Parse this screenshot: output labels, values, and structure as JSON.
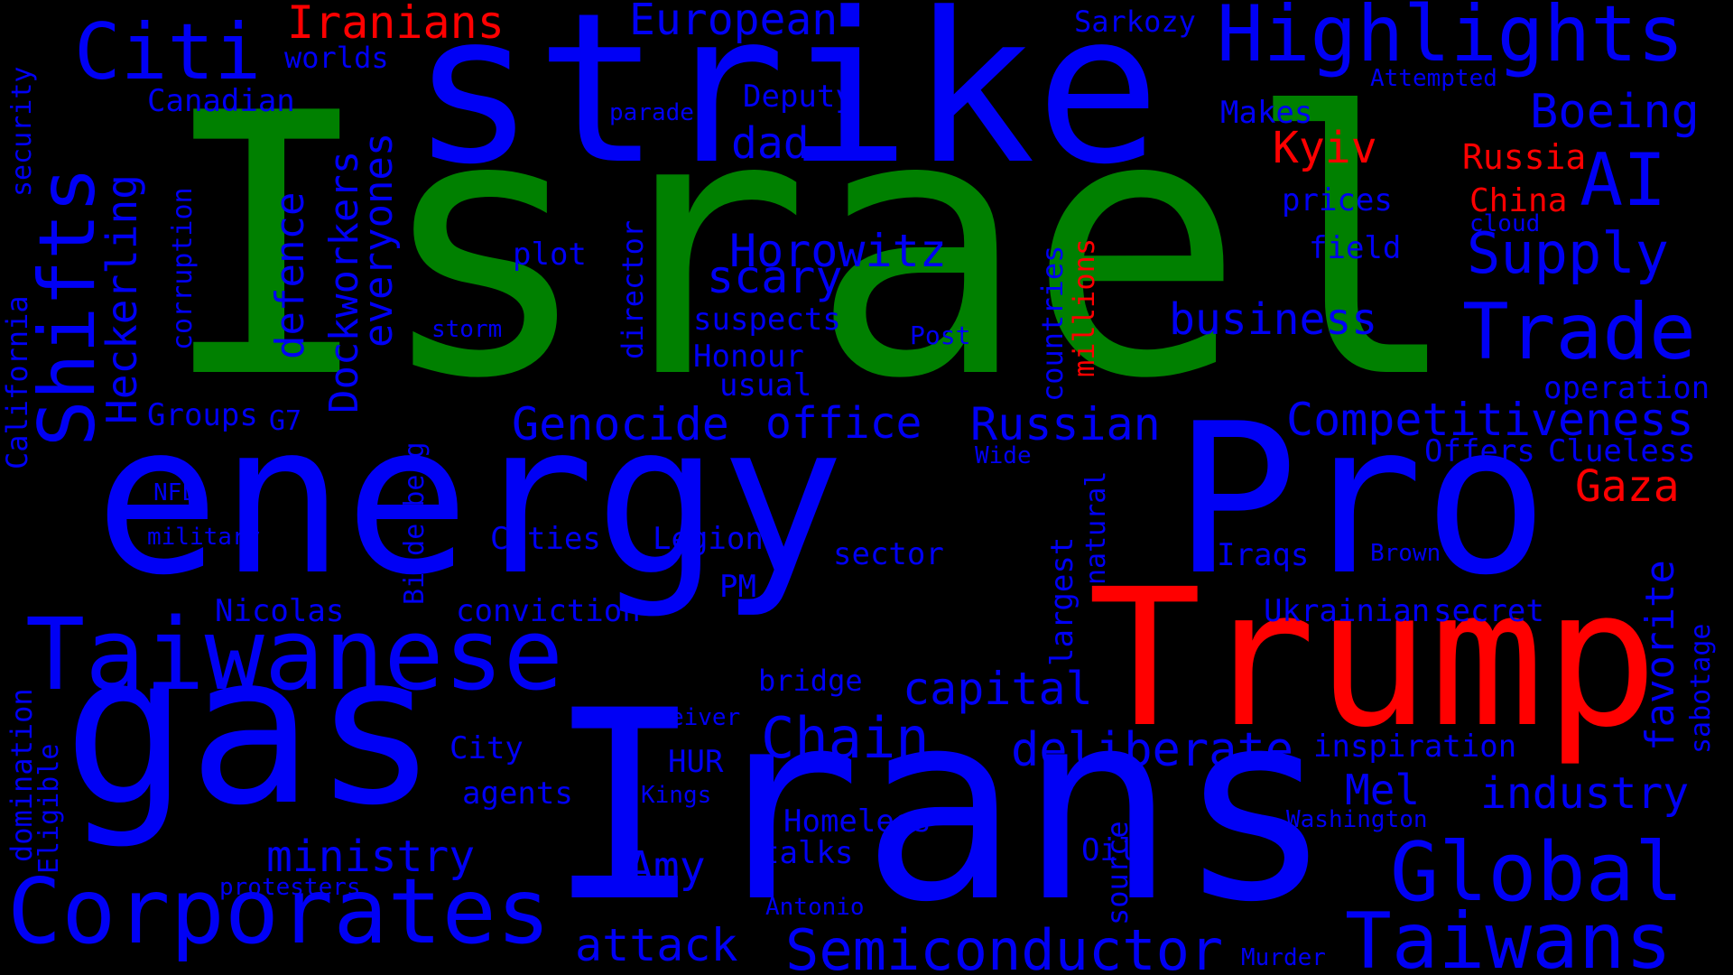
{
  "colors": {
    "blue": "#0000f5",
    "green": "#008000",
    "red": "#ff0000",
    "background": "#000000"
  },
  "words": {
    "israel": "Israel",
    "strike": "strike",
    "energy": "energy",
    "pro": "Pro",
    "trump": "Trump",
    "irans": "Irans",
    "gas": "gas",
    "taiwanese": "Taiwanese",
    "corporates": "Corporates",
    "highlights": "Highlights",
    "citi": "Citi",
    "shifts": "Shifts",
    "global": "Global",
    "taiwans": "Taiwans",
    "semiconductor": "Semiconductor",
    "trade": "Trade",
    "supply": "Supply",
    "ai": "AI",
    "boeing": "Boeing",
    "competitiveness": "Competitiveness",
    "chain": "Chain",
    "deliberate": "deliberate",
    "industry": "industry",
    "business": "business",
    "horowitz": "Horowitz",
    "scary": "scary",
    "office": "office",
    "genocide": "Genocide",
    "russian": "Russian",
    "european": "European",
    "iranians": "Iranians",
    "kyiv": "Kyiv",
    "russia": "Russia",
    "china": "China",
    "gaza": "Gaza",
    "millions": "millions",
    "capital": "capital",
    "ministry": "ministry",
    "attack": "attack",
    "amy": "Amy",
    "dad": "dad",
    "heckerling": "Heckerling",
    "dockworkers": "Dockworkers",
    "everyones": "everyones",
    "defence": "defence",
    "corruption": "corruption",
    "california": "California",
    "security": "security",
    "domination": "domination",
    "eligible": "Eligible",
    "bilderberg": "Bilderberg",
    "director": "director",
    "countries": "countries",
    "natural": "natural",
    "largest": "largest",
    "source": "source",
    "favorite": "favorite",
    "sabotage": "sabotage",
    "canadian": "Canadian",
    "worlds": "worlds",
    "sarkozy": "Sarkozy",
    "attempted": "Attempted",
    "deputy": "Deputy",
    "parade": "parade",
    "makes": "Makes",
    "prices": "prices",
    "cloud": "cloud",
    "field": "field",
    "plot": "plot",
    "suspects": "suspects",
    "honour": "Honour",
    "usual": "usual",
    "storm": "storm",
    "post": "Post",
    "operation": "operation",
    "groups": "Groups",
    "g7": "G7",
    "offers": "Offers",
    "clueless": "Clueless",
    "wide": "Wide",
    "nfl": "NFL",
    "military": "military",
    "cities": "Cities",
    "legion": "Legion",
    "sector": "sector",
    "iraqs": "Iraqs",
    "brown": "Brown",
    "pm": "PM",
    "nicolas": "Nicolas",
    "conviction": "conviction",
    "ukrainian": "Ukrainian",
    "secret": "secret",
    "bridge": "bridge",
    "receiver": "Receiver",
    "city": "City",
    "hur": "HUR",
    "inspiration": "inspiration",
    "agents": "agents",
    "kings": "Kings",
    "mel": "Mel",
    "washington": "Washington",
    "homeless": "Homeless",
    "talks": "talks",
    "oil": "Oil",
    "protesters": "protesters",
    "antonio": "Antonio",
    "murder": "Murder"
  }
}
